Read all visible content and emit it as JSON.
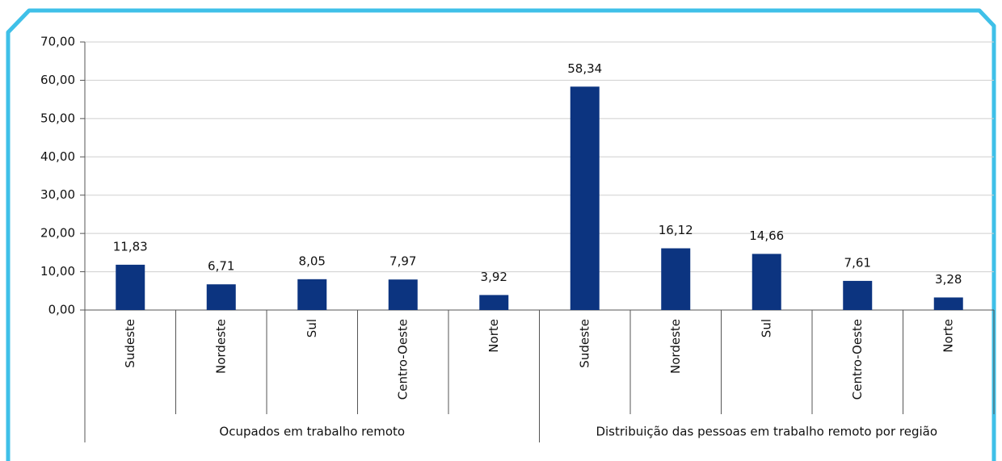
{
  "chart_data": {
    "type": "bar",
    "groups": [
      "Ocupados em trabalho remoto",
      "Distribuição das pessoas em trabalho remoto por região"
    ],
    "categories": [
      "Sudeste",
      "Nordeste",
      "Sul",
      "Centro-Oeste",
      "Norte",
      "Sudeste",
      "Nordeste",
      "Sul",
      "Centro-Oeste",
      "Norte"
    ],
    "values": [
      11.83,
      6.71,
      8.05,
      7.97,
      3.92,
      58.34,
      16.12,
      14.66,
      7.61,
      3.28
    ],
    "value_labels": [
      "11,83",
      "6,71",
      "8,05",
      "7,97",
      "3,92",
      "58,34",
      "16,12",
      "14,66",
      "7,61",
      "3,28"
    ],
    "color": "#0c3480",
    "ylim": [
      0,
      70
    ],
    "yticks": [
      {
        "value": 0,
        "label": "0,00"
      },
      {
        "value": 10,
        "label": "10,00"
      },
      {
        "value": 20,
        "label": "20,00"
      },
      {
        "value": 30,
        "label": "30,00"
      },
      {
        "value": 40,
        "label": "40,00"
      },
      {
        "value": 50,
        "label": "50,00"
      },
      {
        "value": 60,
        "label": "60,00"
      },
      {
        "value": 70,
        "label": "70,00"
      }
    ],
    "grid": true
  }
}
